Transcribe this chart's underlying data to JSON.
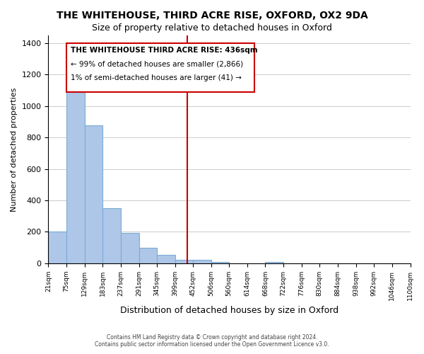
{
  "title": "THE WHITEHOUSE, THIRD ACRE RISE, OXFORD, OX2 9DA",
  "subtitle": "Size of property relative to detached houses in Oxford",
  "xlabel": "Distribution of detached houses by size in Oxford",
  "ylabel": "Number of detached properties",
  "bar_color": "#aec6e8",
  "bar_edge_color": "#7badd4",
  "background_color": "#ffffff",
  "grid_color": "#cccccc",
  "bin_edges": [
    21,
    75,
    129,
    183,
    237,
    291,
    345,
    399,
    452,
    506,
    560,
    614,
    668,
    722,
    776,
    830,
    884,
    938,
    992,
    1046,
    1100
  ],
  "bin_labels": [
    "21sqm",
    "75sqm",
    "129sqm",
    "183sqm",
    "237sqm",
    "291sqm",
    "345sqm",
    "399sqm",
    "452sqm",
    "506sqm",
    "560sqm",
    "614sqm",
    "668sqm",
    "722sqm",
    "776sqm",
    "830sqm",
    "884sqm",
    "938sqm",
    "992sqm",
    "1046sqm",
    "1100sqm"
  ],
  "bar_values": [
    200,
    1120,
    880,
    350,
    195,
    100,
    55,
    20,
    20,
    10,
    0,
    0,
    10,
    0,
    0,
    0,
    0,
    0,
    0,
    0
  ],
  "ylim": [
    0,
    1450
  ],
  "yticks": [
    0,
    200,
    400,
    600,
    800,
    1000,
    1200,
    1400
  ],
  "property_line_x": 436,
  "property_line_color": "#cc0000",
  "annotation_title": "THE WHITEHOUSE THIRD ACRE RISE: 436sqm",
  "annotation_line1": "← 99% of detached houses are smaller (2,866)",
  "annotation_line2": "1% of semi-detached houses are larger (41) →",
  "footer_line1": "Contains HM Land Registry data © Crown copyright and database right 2024.",
  "footer_line2": "Contains public sector information licensed under the Open Government Licence v3.0."
}
